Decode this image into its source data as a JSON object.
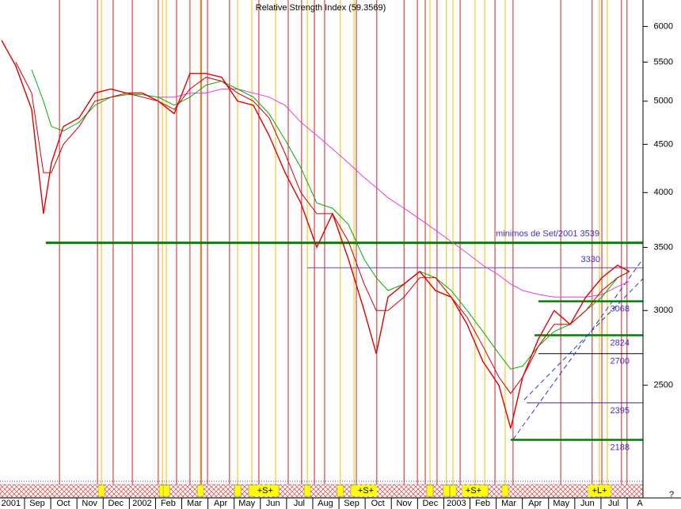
{
  "chart_data": {
    "type": "line",
    "title": "Relative Strength Index (59.3569)",
    "log_scale": true,
    "xlim": [
      -0.42,
      24.12
    ],
    "ylim": [
      1970,
      6400
    ],
    "yticks": [
      2500,
      3000,
      3500,
      4000,
      4500,
      5000,
      5500,
      6000
    ],
    "xticks": [
      {
        "value": 0,
        "label": "2001"
      },
      {
        "value": 1,
        "label": "Sep"
      },
      {
        "value": 2,
        "label": "Oct"
      },
      {
        "value": 3,
        "label": "Nov"
      },
      {
        "value": 4,
        "label": "Dec"
      },
      {
        "value": 5,
        "label": "2002"
      },
      {
        "value": 6,
        "label": "Feb"
      },
      {
        "value": 7,
        "label": "Mar"
      },
      {
        "value": 8,
        "label": "Apr"
      },
      {
        "value": 9,
        "label": "May"
      },
      {
        "value": 10,
        "label": "Jun"
      },
      {
        "value": 11,
        "label": "Jul"
      },
      {
        "value": 12,
        "label": "Aug"
      },
      {
        "value": 13,
        "label": "Sep"
      },
      {
        "value": 14,
        "label": "Oct"
      },
      {
        "value": 15,
        "label": "Nov"
      },
      {
        "value": 16,
        "label": "Dec"
      },
      {
        "value": 17,
        "label": "2003"
      },
      {
        "value": 18,
        "label": "Feb"
      },
      {
        "value": 19,
        "label": "Mar"
      },
      {
        "value": 20,
        "label": "Apr"
      },
      {
        "value": 21,
        "label": "May"
      },
      {
        "value": 22,
        "label": "Jun"
      },
      {
        "value": 23,
        "label": "Jul"
      },
      {
        "value": 24,
        "label": "A"
      }
    ],
    "x": [
      -0.36,
      0.18,
      0.79,
      1.24,
      1.54,
      2.0,
      2.6,
      3.2,
      3.81,
      4.41,
      5.02,
      5.62,
      6.23,
      6.83,
      7.44,
      8.04,
      8.65,
      9.25,
      9.85,
      10.46,
      11.06,
      11.67,
      12.27,
      12.88,
      13.48,
      13.94,
      14.39,
      15.0,
      15.6,
      16.2,
      16.8,
      17.41,
      18.01,
      18.62,
      19.07,
      19.53,
      20.13,
      20.73,
      21.34,
      21.94,
      22.55,
      23.15,
      23.6
    ],
    "series": [
      {
        "color": "#e00000",
        "width": 1.4,
        "values": [
          5800,
          5450,
          4900,
          3800,
          4300,
          4700,
          4800,
          5100,
          5150,
          5100,
          5100,
          5000,
          4850,
          5350,
          5350,
          5300,
          5000,
          4950,
          4600,
          4200,
          3900,
          3500,
          3800,
          3400,
          3000,
          2700,
          3100,
          3200,
          3300,
          3150,
          3100,
          2900,
          2650,
          2500,
          2250,
          2550,
          2800,
          3000,
          2900,
          3100,
          3250,
          3350,
          3300
        ]
      },
      {
        "color": "#d00000",
        "width": 1,
        "values": [
          null,
          5500,
          5100,
          4200,
          4200,
          4500,
          4700,
          5000,
          5050,
          5100,
          5050,
          5000,
          4900,
          5150,
          5300,
          5250,
          5100,
          5000,
          4800,
          4400,
          4000,
          3800,
          3800,
          3550,
          3200,
          3000,
          3000,
          3100,
          3250,
          3250,
          3100,
          2950,
          2750,
          2550,
          2450,
          2550,
          2750,
          2900,
          2900,
          3000,
          3150,
          3250,
          3300
        ]
      },
      {
        "color": "#00b000",
        "width": 1,
        "values": [
          null,
          null,
          5400,
          5000,
          4700,
          4650,
          4750,
          4950,
          5050,
          5080,
          5080,
          5050,
          4950,
          5050,
          5200,
          5250,
          5150,
          5050,
          4850,
          4550,
          4250,
          3900,
          3850,
          3700,
          3400,
          3250,
          3150,
          3200,
          3300,
          3250,
          3150,
          3000,
          2850,
          2700,
          2600,
          2620,
          2750,
          2850,
          2900,
          3000,
          3100,
          3250,
          3300
        ]
      },
      {
        "color": "#e040e0",
        "width": 1,
        "values": [
          null,
          null,
          null,
          null,
          null,
          null,
          null,
          null,
          null,
          null,
          null,
          5050,
          5050,
          5100,
          5100,
          5150,
          5150,
          5100,
          5050,
          4950,
          4750,
          4600,
          4450,
          4300,
          4150,
          4050,
          3950,
          3850,
          3750,
          3650,
          3550,
          3450,
          3350,
          3270,
          3200,
          3150,
          3120,
          3100,
          3100,
          3100,
          3120,
          3180,
          3220
        ]
      }
    ],
    "levels": [
      {
        "value": 3539,
        "from": 1.33,
        "color": "#008000",
        "width": 3,
        "label": "minimos de Set/2001 3539"
      },
      {
        "value": 3330,
        "from": 11.31,
        "color": "#6040c0",
        "width": 1
      },
      {
        "value": 3068,
        "from": 20.13,
        "color": "#008000",
        "width": 2.5
      },
      {
        "value": 2824,
        "from": 19.98,
        "color": "#008000",
        "width": 2.5
      },
      {
        "value": 2700,
        "from": 20.13,
        "color": "#000000",
        "width": 1
      },
      {
        "value": 2395,
        "from": 19.68,
        "color": "#4020a0",
        "width": 1
      },
      {
        "value": 2188,
        "from": 19.07,
        "color": "#008000",
        "width": 2.5
      }
    ],
    "red_signals": [
      1.85,
      3.3,
      3.9,
      4.63,
      5.62,
      6.32,
      6.83,
      7.26,
      7.5,
      8.34,
      9.46,
      10.58,
      11.09,
      11.58,
      11.97,
      13.18,
      13.96,
      15.0,
      15.51,
      15.81,
      16.26,
      17.14,
      18.47,
      19.16,
      20.98,
      22.18,
      22.55,
      23.3,
      23.51
    ],
    "yellow_signals": [
      3.45,
      5.78,
      5.93,
      7.23,
      8.65,
      9.19,
      10.1,
      11.31,
      12.57,
      13.09,
      15.99,
      16.62,
      16.87,
      17.71,
      18.08,
      18.86,
      22.46,
      22.76
    ],
    "strip_labels": [
      {
        "text": "+S+",
        "x": 9.7
      },
      {
        "text": "+S+",
        "x": 13.54
      },
      {
        "text": "+S+",
        "x": 17.65
      },
      {
        "text": "+L+",
        "x": 22.46
      }
    ],
    "corner_mark": "?"
  }
}
